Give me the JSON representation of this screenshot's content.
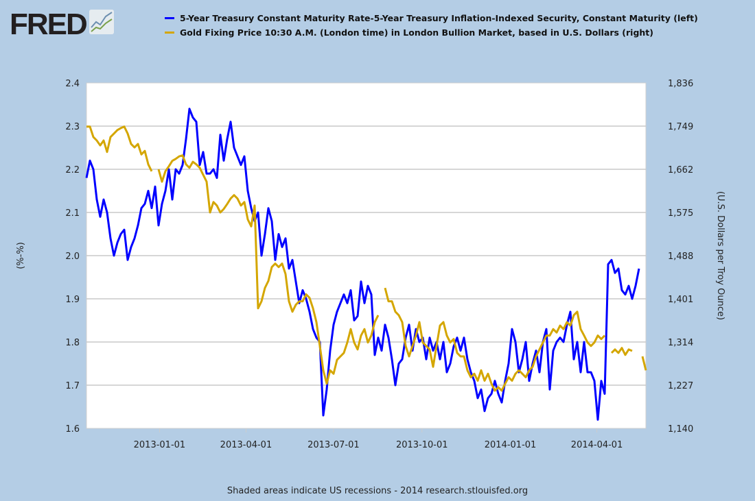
{
  "logo": {
    "text": "FRED"
  },
  "colors": {
    "series1": "#0000ff",
    "series2": "#d4a600",
    "background": "#b4cde5",
    "plot_bg": "#ffffff",
    "grid": "#c8c8c8"
  },
  "footer": "Shaded areas indicate US recessions - 2014 research.stlouisfed.org",
  "chart_data": {
    "type": "line",
    "title": "",
    "legend_placement": "top",
    "xlabel": "",
    "ylabel": "(%-%)",
    "ylabel_right": "(U.S. Dollars per Troy Ounce)",
    "x_start": "2012-10-17",
    "x_step_days": 3.57,
    "x_ticks": [
      "2013-01-01",
      "2013-04-01",
      "2013-07-01",
      "2013-10-01",
      "2014-01-01",
      "2014-04-01"
    ],
    "x_tick_day_offsets": [
      76,
      166,
      257,
      349,
      441,
      531
    ],
    "x_span_days": 582,
    "ylim": [
      1.6,
      2.4
    ],
    "y_ticks": [
      "1.6",
      "1.7",
      "1.8",
      "1.9",
      "2.0",
      "2.1",
      "2.2",
      "2.3",
      "2.4"
    ],
    "ylim_right": [
      1140,
      1836
    ],
    "y_ticks_right": [
      "1,140",
      "1,227",
      "1,314",
      "1,401",
      "1,488",
      "1,575",
      "1,662",
      "1,749",
      "1,836"
    ],
    "grid": true,
    "series": [
      {
        "name": "5-Year Treasury Constant Maturity Rate-5-Year Treasury Inflation-Indexed Security, Constant Maturity (left)",
        "axis": "left",
        "values": [
          2.18,
          2.22,
          2.2,
          2.13,
          2.09,
          2.13,
          2.1,
          2.04,
          2.0,
          2.03,
          2.05,
          2.06,
          1.99,
          2.02,
          2.04,
          2.07,
          2.11,
          2.12,
          2.15,
          2.11,
          2.16,
          2.07,
          2.12,
          2.15,
          2.2,
          2.13,
          2.2,
          2.19,
          2.21,
          2.27,
          2.34,
          2.32,
          2.31,
          2.21,
          2.24,
          2.19,
          2.19,
          2.2,
          2.18,
          2.28,
          2.22,
          2.27,
          2.31,
          2.25,
          2.23,
          2.21,
          2.23,
          2.15,
          2.11,
          2.08,
          2.1,
          2.0,
          2.05,
          2.11,
          2.08,
          1.99,
          2.05,
          2.02,
          2.04,
          1.97,
          1.99,
          1.94,
          1.89,
          1.92,
          1.9,
          1.87,
          1.83,
          1.81,
          1.8,
          1.63,
          1.69,
          1.78,
          1.84,
          1.87,
          1.89,
          1.91,
          1.89,
          1.92,
          1.85,
          1.86,
          1.94,
          1.89,
          1.93,
          1.91,
          1.77,
          1.81,
          1.78,
          1.84,
          1.81,
          1.76,
          1.7,
          1.75,
          1.76,
          1.81,
          1.84,
          1.78,
          1.83,
          1.8,
          1.81,
          1.76,
          1.81,
          1.78,
          1.8,
          1.76,
          1.8,
          1.73,
          1.75,
          1.79,
          1.81,
          1.78,
          1.81,
          1.76,
          1.73,
          1.71,
          1.67,
          1.69,
          1.64,
          1.67,
          1.68,
          1.71,
          1.68,
          1.66,
          1.71,
          1.75,
          1.83,
          1.8,
          1.73,
          1.76,
          1.8,
          1.71,
          1.75,
          1.78,
          1.73,
          1.8,
          1.83,
          1.69,
          1.78,
          1.8,
          1.81,
          1.8,
          1.84,
          1.87,
          1.76,
          1.8,
          1.73,
          1.8,
          1.73,
          1.73,
          1.71,
          1.62,
          1.71,
          1.68,
          1.98,
          1.99,
          1.96,
          1.97,
          1.92,
          1.91,
          1.93,
          1.9,
          1.93,
          1.97,
          null,
          1.95
        ]
      },
      {
        "name": "Gold Fixing Price 10:30 A.M. (London time) in London Bullion Market, based in U.S. Dollars (right)",
        "axis": "right",
        "values": [
          1748,
          1748,
          1727,
          1720,
          1710,
          1720,
          1697,
          1727,
          1734,
          1741,
          1745,
          1748,
          1734,
          1713,
          1706,
          1713,
          1692,
          1699,
          1672,
          1658,
          null,
          1662,
          1637,
          1658,
          1668,
          1679,
          1683,
          1688,
          1690,
          1672,
          1665,
          1677,
          1672,
          1665,
          1651,
          1637,
          1575,
          1596,
          1589,
          1575,
          1582,
          1592,
          1603,
          1610,
          1603,
          1589,
          1596,
          1561,
          1547,
          1589,
          1382,
          1396,
          1423,
          1437,
          1465,
          1472,
          1465,
          1472,
          1451,
          1396,
          1375,
          1389,
          1396,
          1396,
          1410,
          1403,
          1382,
          1354,
          1306,
          1257,
          1230,
          1257,
          1250,
          1278,
          1285,
          1292,
          1313,
          1340,
          1313,
          1299,
          1327,
          1340,
          1313,
          1327,
          1354,
          1368,
          null,
          1423,
          1396,
          1396,
          1375,
          1368,
          1354,
          1306,
          1285,
          1306,
          1327,
          1354,
          1313,
          1306,
          1299,
          1264,
          1306,
          1347,
          1354,
          1327,
          1313,
          1320,
          1292,
          1285,
          1285,
          1257,
          1243,
          1250,
          1236,
          1257,
          1236,
          1250,
          1230,
          1216,
          1223,
          1216,
          1230,
          1243,
          1236,
          1250,
          1257,
          1250,
          1243,
          1257,
          1264,
          1285,
          1299,
          1313,
          1327,
          1327,
          1340,
          1333,
          1347,
          1340,
          1354,
          1347,
          1368,
          1375,
          1340,
          1327,
          1313,
          1306,
          1313,
          1327,
          1320,
          1327,
          null,
          1292,
          1299,
          1292,
          1302,
          1288,
          1299,
          1296,
          null,
          null,
          1285,
          1257
        ]
      }
    ]
  }
}
